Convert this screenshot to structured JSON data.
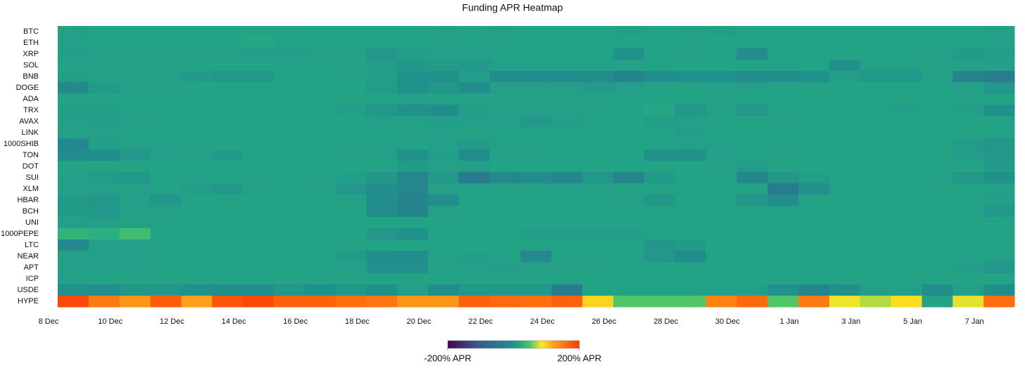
{
  "chart_data": {
    "type": "heatmap",
    "title": "Funding APR Heatmap",
    "x": [
      "8 Dec",
      null,
      "10 Dec",
      null,
      "12 Dec",
      null,
      "14 Dec",
      null,
      "16 Dec",
      null,
      "18 Dec",
      null,
      "20 Dec",
      null,
      "22 Dec",
      null,
      "24 Dec",
      null,
      "26 Dec",
      null,
      "28 Dec",
      null,
      "30 Dec",
      null,
      "1 Jan",
      null,
      "3 Jan",
      null,
      "5 Jan",
      null,
      "7 Jan"
    ],
    "y": [
      "BTC",
      "ETH",
      "XRP",
      "SOL",
      "BNB",
      "DOGE",
      "ADA",
      "TRX",
      "AVAX",
      "LINK",
      "1000SHIB",
      "TON",
      "DOT",
      "SUI",
      "XLM",
      "HBAR",
      "BCH",
      "UNI",
      "1000PEPE",
      "LTC",
      "NEAR",
      "APT",
      "ICP",
      "USDE",
      "HYPE"
    ],
    "z": [
      [
        12,
        14,
        14,
        14,
        14,
        14,
        16,
        15,
        14,
        14,
        14,
        14,
        12,
        13,
        12,
        14,
        14,
        14,
        10,
        14,
        12,
        10,
        14,
        14,
        14,
        14,
        14,
        14,
        14,
        14,
        12
      ],
      [
        12,
        14,
        14,
        14,
        14,
        16,
        18,
        14,
        14,
        14,
        14,
        14,
        14,
        14,
        14,
        14,
        14,
        14,
        14,
        16,
        14,
        14,
        14,
        14,
        14,
        14,
        14,
        14,
        14,
        14,
        12
      ],
      [
        10,
        12,
        12,
        12,
        12,
        12,
        10,
        10,
        12,
        12,
        5,
        10,
        12,
        12,
        14,
        14,
        14,
        14,
        0,
        14,
        12,
        14,
        -10,
        14,
        14,
        14,
        14,
        14,
        12,
        8,
        10
      ],
      [
        14,
        14,
        14,
        14,
        14,
        14,
        14,
        14,
        14,
        14,
        10,
        5,
        8,
        5,
        10,
        12,
        12,
        12,
        14,
        14,
        14,
        14,
        14,
        12,
        14,
        0,
        12,
        12,
        14,
        12,
        12
      ],
      [
        10,
        12,
        12,
        12,
        8,
        5,
        5,
        14,
        16,
        12,
        10,
        0,
        0,
        10,
        -10,
        -10,
        -10,
        -5,
        -25,
        -5,
        0,
        0,
        -10,
        -5,
        0,
        10,
        5,
        5,
        12,
        -25,
        -40
      ],
      [
        -15,
        8,
        12,
        12,
        14,
        14,
        14,
        14,
        14,
        14,
        8,
        0,
        5,
        -5,
        10,
        10,
        10,
        8,
        10,
        14,
        14,
        12,
        12,
        14,
        14,
        14,
        14,
        14,
        14,
        12,
        5
      ],
      [
        14,
        14,
        14,
        14,
        14,
        14,
        14,
        16,
        16,
        14,
        14,
        12,
        14,
        14,
        14,
        14,
        14,
        14,
        14,
        14,
        14,
        14,
        14,
        14,
        14,
        14,
        14,
        14,
        14,
        14,
        14
      ],
      [
        10,
        10,
        14,
        14,
        14,
        14,
        14,
        14,
        14,
        10,
        5,
        0,
        -5,
        10,
        12,
        12,
        12,
        12,
        14,
        18,
        5,
        12,
        5,
        14,
        14,
        14,
        14,
        10,
        14,
        10,
        0
      ],
      [
        12,
        8,
        12,
        14,
        14,
        14,
        14,
        14,
        14,
        14,
        12,
        12,
        10,
        12,
        12,
        5,
        10,
        14,
        14,
        10,
        12,
        14,
        14,
        12,
        14,
        14,
        14,
        14,
        14,
        14,
        14
      ],
      [
        12,
        12,
        14,
        16,
        14,
        14,
        14,
        14,
        14,
        14,
        14,
        12,
        12,
        14,
        14,
        14,
        14,
        16,
        14,
        14,
        10,
        14,
        14,
        14,
        14,
        14,
        14,
        14,
        14,
        14,
        14
      ],
      [
        -15,
        10,
        12,
        12,
        14,
        14,
        14,
        14,
        14,
        14,
        14,
        14,
        12,
        8,
        12,
        14,
        14,
        14,
        14,
        14,
        12,
        12,
        14,
        12,
        14,
        14,
        14,
        14,
        14,
        8,
        5
      ],
      [
        -10,
        -5,
        5,
        12,
        12,
        8,
        14,
        14,
        14,
        12,
        12,
        0,
        10,
        -5,
        14,
        12,
        14,
        14,
        14,
        0,
        0,
        12,
        14,
        14,
        14,
        14,
        14,
        14,
        14,
        10,
        5
      ],
      [
        14,
        14,
        14,
        14,
        14,
        14,
        14,
        14,
        14,
        14,
        14,
        8,
        12,
        10,
        14,
        14,
        14,
        14,
        14,
        14,
        14,
        12,
        8,
        14,
        14,
        14,
        14,
        14,
        14,
        14,
        8
      ],
      [
        12,
        8,
        5,
        16,
        12,
        14,
        14,
        14,
        12,
        10,
        5,
        -20,
        5,
        -45,
        -15,
        -10,
        -20,
        5,
        -25,
        8,
        14,
        14,
        -20,
        5,
        10,
        16,
        16,
        16,
        12,
        5,
        0
      ],
      [
        12,
        12,
        12,
        14,
        10,
        5,
        12,
        14,
        14,
        5,
        -5,
        -20,
        12,
        12,
        12,
        12,
        12,
        12,
        14,
        14,
        14,
        14,
        14,
        -40,
        0,
        14,
        14,
        14,
        14,
        14,
        12
      ],
      [
        8,
        5,
        12,
        5,
        14,
        14,
        14,
        14,
        14,
        14,
        -5,
        -25,
        -10,
        14,
        14,
        14,
        14,
        14,
        12,
        5,
        14,
        14,
        5,
        -5,
        14,
        14,
        14,
        14,
        14,
        14,
        10
      ],
      [
        8,
        5,
        12,
        12,
        14,
        14,
        14,
        14,
        14,
        14,
        -10,
        -25,
        12,
        14,
        14,
        14,
        14,
        16,
        14,
        14,
        14,
        14,
        14,
        14,
        14,
        14,
        14,
        14,
        14,
        14,
        5
      ],
      [
        12,
        12,
        14,
        14,
        14,
        14,
        14,
        14,
        14,
        14,
        14,
        14,
        14,
        14,
        14,
        14,
        14,
        14,
        14,
        14,
        14,
        14,
        14,
        14,
        14,
        14,
        14,
        14,
        14,
        14,
        14
      ],
      [
        30,
        25,
        40,
        14,
        14,
        14,
        14,
        14,
        14,
        14,
        5,
        0,
        14,
        14,
        14,
        10,
        10,
        10,
        10,
        14,
        14,
        14,
        14,
        14,
        14,
        14,
        14,
        14,
        14,
        14,
        14
      ],
      [
        -15,
        12,
        12,
        14,
        14,
        14,
        14,
        14,
        14,
        14,
        14,
        14,
        14,
        14,
        14,
        14,
        14,
        14,
        14,
        5,
        8,
        14,
        14,
        14,
        14,
        14,
        14,
        14,
        14,
        14,
        14
      ],
      [
        12,
        12,
        12,
        14,
        14,
        14,
        14,
        14,
        14,
        8,
        -5,
        -10,
        14,
        10,
        14,
        -15,
        14,
        14,
        14,
        5,
        -5,
        14,
        14,
        14,
        14,
        14,
        14,
        14,
        14,
        14,
        12
      ],
      [
        12,
        12,
        12,
        14,
        16,
        16,
        16,
        14,
        14,
        12,
        0,
        0,
        12,
        12,
        10,
        12,
        12,
        12,
        14,
        14,
        14,
        14,
        14,
        14,
        14,
        14,
        14,
        14,
        14,
        10,
        5
      ],
      [
        12,
        14,
        14,
        14,
        14,
        14,
        14,
        14,
        14,
        14,
        14,
        14,
        14,
        14,
        14,
        14,
        14,
        14,
        14,
        14,
        14,
        14,
        14,
        14,
        14,
        14,
        14,
        14,
        14,
        14,
        14
      ],
      [
        0,
        -5,
        5,
        5,
        0,
        -5,
        -5,
        5,
        0,
        5,
        0,
        10,
        -5,
        5,
        5,
        5,
        -40,
        14,
        14,
        14,
        14,
        10,
        10,
        0,
        -25,
        0,
        10,
        10,
        -5,
        10,
        -5
      ],
      [
        190,
        150,
        130,
        175,
        120,
        180,
        190,
        170,
        170,
        160,
        155,
        130,
        130,
        170,
        165,
        160,
        170,
        95,
        50,
        50,
        50,
        145,
        165,
        50,
        150,
        82,
        70,
        90,
        15,
        80,
        160
      ]
    ],
    "zlim": [
      -200,
      200
    ],
    "colorscale": [
      [
        -200,
        "#440154"
      ],
      [
        -120,
        "#3b528b"
      ],
      [
        -60,
        "#2c728e"
      ],
      [
        0,
        "#21918c"
      ],
      [
        20,
        "#24aa83"
      ],
      [
        50,
        "#52c569"
      ],
      [
        85,
        "#fde725"
      ],
      [
        120,
        "#fda21a"
      ],
      [
        200,
        "#ff3a06"
      ]
    ],
    "cticks": [
      {
        "value": -200,
        "label": "-200% APR"
      },
      {
        "value": 200,
        "label": "200% APR"
      }
    ]
  }
}
